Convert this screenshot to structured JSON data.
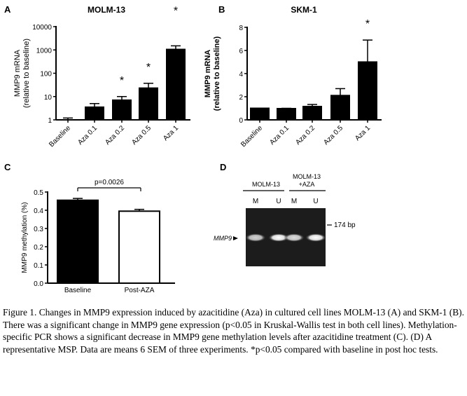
{
  "chart_data": [
    {
      "panel": "A",
      "type": "bar",
      "title": "MOLM-13",
      "ylabel_line1": "MMP9 mRNA",
      "ylabel_line2": "(relative to baseline)",
      "yscale": "log",
      "ylim": [
        1,
        10000
      ],
      "yticks": [
        "1",
        "10",
        "100",
        "1000",
        "10000"
      ],
      "categories": [
        "Baseline",
        "Aza 0.1",
        "Aza 0.2",
        "Aza 0.5",
        "Aza 1"
      ],
      "values": [
        1.0,
        3.5,
        7,
        23,
        1050
      ],
      "error_upper": [
        1.2,
        5,
        10,
        37,
        1500
      ],
      "significant": [
        false,
        false,
        true,
        true,
        true
      ],
      "sig_label": "*"
    },
    {
      "panel": "B",
      "type": "bar",
      "title": "SKM-1",
      "ylabel_line1": "MMP9 mRNA",
      "ylabel_line2": "(relative to baseline)",
      "yscale": "linear",
      "ylim": [
        0,
        8
      ],
      "yticks": [
        "0",
        "2",
        "4",
        "6",
        "8"
      ],
      "categories": [
        "Baseline",
        "Aza 0.1",
        "Aza 0.2",
        "Aza 0.5",
        "Aza 1"
      ],
      "values": [
        1.0,
        0.97,
        1.15,
        2.1,
        5.0
      ],
      "error_upper": [
        1.0,
        1.0,
        1.33,
        2.7,
        6.9
      ],
      "significant": [
        false,
        false,
        false,
        false,
        true
      ],
      "sig_label": "*"
    },
    {
      "panel": "C",
      "type": "bar",
      "title": "",
      "ylabel_line1": "MMP9 methylation (%)",
      "yscale": "linear",
      "ylim": [
        0,
        0.5
      ],
      "yticks": [
        "0.0",
        "0.1",
        "0.2",
        "0.3",
        "0.4",
        "0.5"
      ],
      "categories": [
        "Baseline",
        "Post-AZA"
      ],
      "values": [
        0.455,
        0.395
      ],
      "error_upper": [
        0.465,
        0.405
      ],
      "bar_fill": [
        "#000000",
        "#ffffff"
      ],
      "annotation": "p=0.0026"
    }
  ],
  "gel": {
    "panel": "D",
    "group1": "MOLM-13",
    "group2_line1": "MOLM-13",
    "group2_line2": "+AZA",
    "lanes": [
      "M",
      "U",
      "M",
      "U"
    ],
    "marker": "174 bp",
    "band_label": "MMP9"
  },
  "caption": "Figure 1. Changes in MMP9 expression induced by azacitidine (Aza) in cultured cell lines MOLM-13 (A) and SKM-1 (B). There was a significant change in MMP9 gene expression (p<0.05 in Kruskal-Wallis test in both cell lines). Methylation-specific PCR shows a significant decrease in MMP9 gene methylation levels after azacitidine treatment (C). (D) A representative MSP. Data are means 6 SEM of three experiments. *p<0.05 compared with baseline in post hoc tests."
}
